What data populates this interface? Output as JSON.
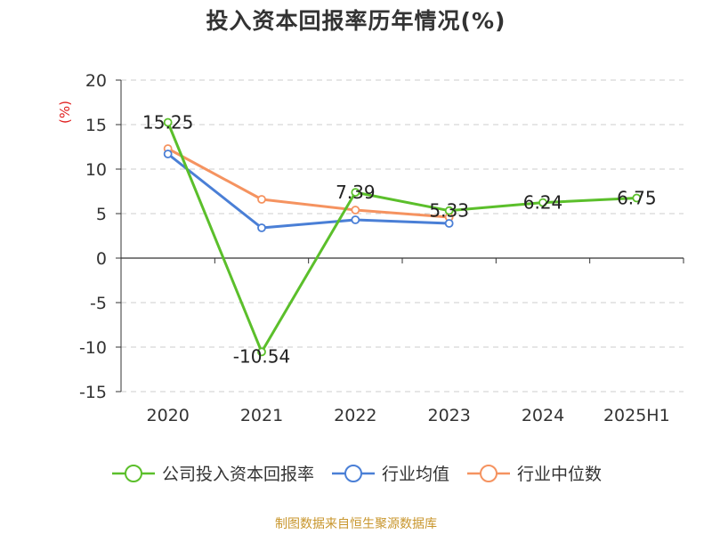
{
  "title": "投入资本回报率历年情况(%)",
  "source": "制图数据来自恒生聚源数据库",
  "colors": {
    "company": "#5bbf2b",
    "industry_avg": "#4a7fd6",
    "industry_median": "#f59360",
    "grid": "#cccccc",
    "axis": "#333333",
    "unit_label": "#e02020"
  },
  "chart_data": {
    "type": "line",
    "title": "投入资本回报率历年情况(%)",
    "ylabel": "(%)",
    "xlabel": "",
    "categories": [
      "2020",
      "2021",
      "2022",
      "2023",
      "2024",
      "2025H1"
    ],
    "ylim": [
      -15,
      20
    ],
    "yticks": [
      20,
      15,
      10,
      5,
      0,
      -5,
      -10,
      -15
    ],
    "grid": true,
    "legend_position": "bottom",
    "series": [
      {
        "name": "公司投入资本回报率",
        "color": "#5bbf2b",
        "values": [
          15.25,
          -10.54,
          7.39,
          5.33,
          6.24,
          6.75
        ],
        "labels": [
          "15.25",
          "-10.54",
          "7.39",
          "5.33",
          "6.24",
          "6.75"
        ]
      },
      {
        "name": "行业均值",
        "color": "#4a7fd6",
        "values": [
          11.7,
          3.4,
          4.3,
          3.9,
          null,
          null
        ]
      },
      {
        "name": "行业中位数",
        "color": "#f59360",
        "values": [
          12.3,
          6.6,
          5.4,
          4.6,
          null,
          null
        ]
      }
    ]
  }
}
